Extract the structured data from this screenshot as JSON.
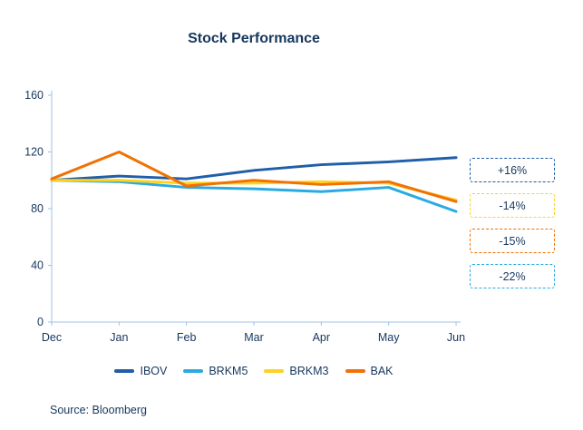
{
  "title": "Stock Performance",
  "source": "Source: Bloomberg",
  "chart_data": {
    "type": "line",
    "x": [
      "Dec",
      "Jan",
      "Feb",
      "Mar",
      "Apr",
      "May",
      "Jun"
    ],
    "series": [
      {
        "name": "IBOV",
        "color": "#1F5EA8",
        "values": [
          100,
          103,
          101,
          107,
          111,
          113,
          116
        ]
      },
      {
        "name": "BRKM5",
        "color": "#29ABE2",
        "values": [
          100,
          99,
          95,
          94,
          92,
          95,
          78
        ]
      },
      {
        "name": "BRKM3",
        "color": "#FFD21F",
        "values": [
          100,
          100,
          98,
          98,
          99,
          98,
          86
        ]
      },
      {
        "name": "BAK",
        "color": "#F07205",
        "values": [
          101,
          120,
          96,
          100,
          97,
          99,
          85
        ]
      }
    ],
    "ylim": [
      0,
      160
    ],
    "yticks": [
      0,
      40,
      80,
      120,
      160
    ],
    "grid": false,
    "legend_position": "bottom",
    "axis_color": "#9DC3E6",
    "annotations": [
      {
        "label": "+16%",
        "color": "#1F5EA8"
      },
      {
        "label": "-14%",
        "color": "#FFD21F"
      },
      {
        "label": "-15%",
        "color": "#F07205"
      },
      {
        "label": "-22%",
        "color": "#29ABE2"
      }
    ]
  }
}
